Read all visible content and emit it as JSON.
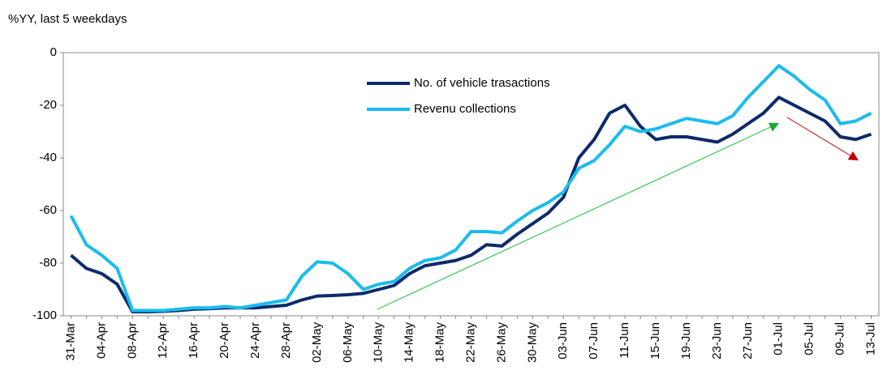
{
  "chart_data": {
    "type": "line",
    "y_label": "%YY, last 5 weekdays",
    "categories": [
      "31-Mar",
      null,
      "04-Apr",
      null,
      "08-Apr",
      null,
      "12-Apr",
      null,
      "16-Apr",
      null,
      "20-Apr",
      null,
      "24-Apr",
      null,
      "28-Apr",
      null,
      "02-May",
      null,
      "06-May",
      null,
      "10-May",
      null,
      "14-May",
      null,
      "18-May",
      null,
      "22-May",
      null,
      "26-May",
      null,
      "30-May",
      null,
      "03-Jun",
      null,
      "07-Jun",
      null,
      "11-Jun",
      null,
      "15-Jun",
      null,
      "19-Jun",
      null,
      "23-Jun",
      null,
      "27-Jun",
      null,
      "01-Jul",
      null,
      "05-Jul",
      null,
      "09-Jul",
      null,
      "13-Jul"
    ],
    "series": [
      {
        "name": "No. of vehicle trasactions",
        "color": "#0d2a6b",
        "values": [
          -77,
          -82,
          -84,
          -88,
          -98.5,
          -98.5,
          -98.3,
          -98,
          -97.5,
          -97.3,
          -97,
          -97,
          -97,
          -96.5,
          -96,
          -94,
          -92.5,
          -92.3,
          -92,
          -91.5,
          -90,
          -88.5,
          -84,
          -81,
          -80,
          -79,
          -77,
          -73,
          -73.5,
          -69,
          -65,
          -61,
          -55,
          -40,
          -33,
          -23,
          -20,
          -28,
          -33,
          -32,
          -32,
          -33,
          -34,
          -31,
          -27,
          -23,
          -17,
          -20,
          -23,
          -26,
          -32,
          -33,
          -31
        ]
      },
      {
        "name": "Revenu collections",
        "color": "#1bbcee",
        "values": [
          -62,
          -73,
          -77,
          -82,
          -98,
          -98,
          -98,
          -97.5,
          -97,
          -97,
          -96.5,
          -97,
          -96,
          -95,
          -94,
          -85,
          -79.5,
          -80,
          -84,
          -90,
          -88,
          -87,
          -82,
          -79,
          -78,
          -75,
          -68,
          -68,
          -68.5,
          -64,
          -60,
          -57,
          -53,
          -44,
          -41,
          -35,
          -28,
          -30,
          -29,
          -27,
          -25,
          -26,
          -27,
          -24,
          -17,
          -11,
          -5,
          -9,
          -14,
          -18,
          -27,
          -26,
          -23
        ]
      }
    ],
    "ylim": [
      -100,
      0
    ],
    "yticks": [
      0,
      -20,
      -40,
      -60,
      -80,
      -100
    ]
  }
}
